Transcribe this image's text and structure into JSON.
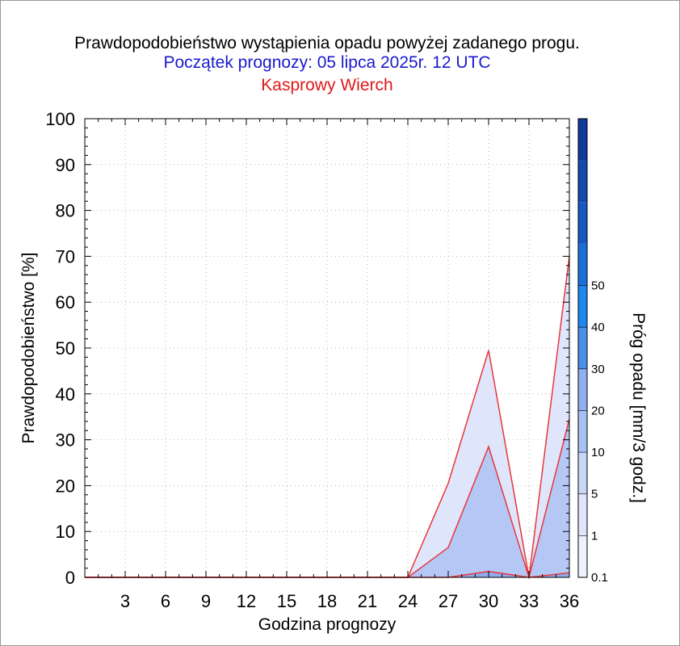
{
  "chart_data": {
    "type": "area",
    "title": "Prawdopodobieństwo wystąpienia opadu powyżej zadanego progu.",
    "subtitle": "Początek prognozy: 05 lipca 2025r. 12 UTC",
    "location": "Kasprowy Wierch",
    "xlabel": "Godzina prognozy",
    "ylabel": "Prawdopodobieństwo [%]",
    "xlim": [
      0,
      36
    ],
    "ylim": [
      0,
      100
    ],
    "x_ticks": [
      "3",
      "6",
      "9",
      "12",
      "15",
      "18",
      "21",
      "24",
      "27",
      "30",
      "33",
      "36"
    ],
    "y_ticks": [
      "0",
      "10",
      "20",
      "30",
      "40",
      "50",
      "60",
      "70",
      "80",
      "90",
      "100"
    ],
    "grid": true,
    "x": [
      0,
      3,
      6,
      9,
      12,
      15,
      18,
      21,
      24,
      27,
      30,
      33,
      36
    ],
    "series": [
      {
        "name": "0.1",
        "color": "#dfe6fb",
        "values": [
          0,
          0,
          0,
          0,
          0,
          0,
          0,
          0,
          0,
          20.5,
          49.5,
          0,
          70
        ]
      },
      {
        "name": "1",
        "color": "#b5c8f5",
        "values": [
          0,
          0,
          0,
          0,
          0,
          0,
          0,
          0,
          0,
          6.5,
          28.5,
          0,
          34.5
        ]
      },
      {
        "name": "5",
        "color": "#8fadee",
        "values": [
          0,
          0,
          0,
          0,
          0,
          0,
          0,
          0,
          0,
          0,
          1.3,
          0,
          1.0
        ]
      }
    ],
    "line_color": "#e8353c",
    "colorbar": {
      "label": "Próg opadu [mm/3 godz.]",
      "tick_labels": [
        "0.1",
        "1",
        "5",
        "10",
        "20",
        "30",
        "40",
        "50"
      ],
      "colors": [
        "#eef1fc",
        "#dfe6fb",
        "#c9d7f7",
        "#a9c1f2",
        "#8fb0ee",
        "#4a90e8",
        "#1e86ef",
        "#1b6fd9",
        "#1758c2",
        "#1448ad",
        "#103a98"
      ]
    }
  }
}
